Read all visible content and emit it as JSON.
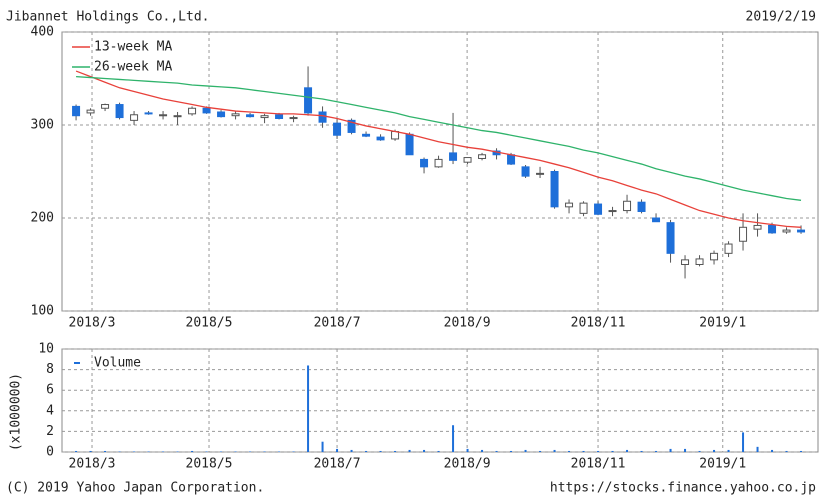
{
  "header": {
    "title": "Jibannet Holdings Co.,Ltd.",
    "date": "2019/2/19"
  },
  "footer": {
    "copyright": "(C) 2019 Yahoo Japan Corporation.",
    "url": "https://stocks.finance.yahoo.co.jp"
  },
  "chart_data": [
    {
      "type": "candlestick",
      "x": [
        0,
        1,
        2,
        3,
        4,
        5,
        6,
        7,
        8,
        9,
        10,
        11,
        12,
        13,
        14,
        15,
        16,
        17,
        18,
        19,
        20,
        21,
        22,
        23,
        24,
        25,
        26,
        27,
        28,
        29,
        30,
        31,
        32,
        33,
        34,
        35,
        36,
        37,
        38,
        39,
        40,
        41,
        42,
        43,
        44,
        45,
        46,
        47,
        48,
        49,
        50
      ],
      "open": [
        320,
        313,
        318,
        322,
        305,
        313,
        311,
        310,
        312,
        318,
        314,
        310,
        311,
        308,
        311,
        307,
        340,
        314,
        302,
        305,
        290,
        287,
        285,
        290,
        263,
        255,
        270,
        260,
        264,
        272,
        268,
        255,
        248,
        250,
        212,
        205,
        215,
        207,
        208,
        217,
        200,
        195,
        150,
        150,
        155,
        162,
        175,
        188,
        192,
        185,
        187
      ],
      "high": [
        322,
        318,
        323,
        324,
        315,
        315,
        315,
        314,
        320,
        320,
        316,
        315,
        313,
        312,
        313,
        310,
        363,
        320,
        307,
        307,
        293,
        290,
        295,
        292,
        265,
        267,
        313,
        265,
        270,
        275,
        270,
        257,
        255,
        252,
        220,
        218,
        218,
        212,
        225,
        220,
        205,
        198,
        160,
        160,
        165,
        175,
        205,
        205,
        195,
        190,
        192
      ],
      "low": [
        305,
        310,
        315,
        306,
        300,
        311,
        306,
        300,
        310,
        312,
        308,
        306,
        308,
        302,
        306,
        303,
        310,
        297,
        285,
        290,
        287,
        283,
        283,
        268,
        248,
        254,
        258,
        258,
        262,
        263,
        257,
        243,
        243,
        210,
        205,
        202,
        203,
        202,
        205,
        205,
        196,
        152,
        135,
        148,
        150,
        158,
        165,
        180,
        183,
        183,
        183
      ],
      "close": [
        310,
        316,
        322,
        308,
        311,
        312,
        311,
        310,
        318,
        313,
        309,
        312,
        309,
        310,
        307,
        308,
        313,
        303,
        289,
        292,
        288,
        284,
        293,
        268,
        255,
        263,
        262,
        265,
        268,
        268,
        258,
        245,
        248,
        212,
        216,
        216,
        204,
        208,
        218,
        207,
        196,
        162,
        155,
        156,
        162,
        172,
        190,
        192,
        184,
        187,
        185
      ],
      "up_color": "#ffffff",
      "down_color": "#1e6fd9",
      "series": [
        {
          "name": "13-week MA",
          "color": "#e8413a",
          "values": [
            358,
            352,
            346,
            340,
            336,
            332,
            328,
            325,
            322,
            319,
            317,
            315,
            314,
            313,
            312,
            312,
            311,
            310,
            307,
            303,
            299,
            296,
            293,
            290,
            286,
            282,
            279,
            276,
            274,
            271,
            268,
            265,
            262,
            258,
            254,
            249,
            244,
            240,
            235,
            230,
            226,
            220,
            214,
            208,
            204,
            200,
            197,
            195,
            193,
            191,
            190
          ]
        },
        {
          "name": "26-week MA",
          "color": "#2fb36b",
          "values": [
            352,
            351,
            350,
            349,
            348,
            347,
            346,
            345,
            343,
            342,
            341,
            340,
            338,
            336,
            334,
            332,
            330,
            328,
            325,
            322,
            319,
            316,
            313,
            309,
            306,
            303,
            300,
            297,
            294,
            292,
            289,
            286,
            283,
            280,
            277,
            273,
            270,
            266,
            262,
            258,
            253,
            249,
            245,
            242,
            238,
            234,
            230,
            227,
            224,
            221,
            219
          ]
        }
      ],
      "xlim": [
        -0.97,
        51.17
      ],
      "xticks": [
        {
          "value": 1.1,
          "label": "2018/3"
        },
        {
          "value": 9.17,
          "label": "2018/5"
        },
        {
          "value": 18,
          "label": "2018/7"
        },
        {
          "value": 26.97,
          "label": "2018/9"
        },
        {
          "value": 36,
          "label": "2018/11"
        },
        {
          "value": 44.6,
          "label": "2019/1"
        }
      ],
      "ylim": [
        100,
        400
      ],
      "yticks": [
        100,
        200,
        300,
        400
      ],
      "grid": true
    },
    {
      "type": "bar",
      "y_label": "(x1000000)",
      "series": [
        {
          "name": "Volume",
          "color": "#1e6fd9",
          "values": [
            0.1,
            0.1,
            0.1,
            0.05,
            0.05,
            0.05,
            0.05,
            0.05,
            0.1,
            0.05,
            0.05,
            0.05,
            0.05,
            0.05,
            0.05,
            0.05,
            8.4,
            1.0,
            0.3,
            0.2,
            0.1,
            0.1,
            0.1,
            0.2,
            0.2,
            0.1,
            2.6,
            0.3,
            0.2,
            0.1,
            0.1,
            0.2,
            0.1,
            0.2,
            0.1,
            0.1,
            0.1,
            0.1,
            0.2,
            0.1,
            0.1,
            0.3,
            0.3,
            0.1,
            0.2,
            0.2,
            1.9,
            0.5,
            0.2,
            0.1,
            0.1
          ]
        }
      ],
      "x": [
        0,
        1,
        2,
        3,
        4,
        5,
        6,
        7,
        8,
        9,
        10,
        11,
        12,
        13,
        14,
        15,
        16,
        17,
        18,
        19,
        20,
        21,
        22,
        23,
        24,
        25,
        26,
        27,
        28,
        29,
        30,
        31,
        32,
        33,
        34,
        35,
        36,
        37,
        38,
        39,
        40,
        41,
        42,
        43,
        44,
        45,
        46,
        47,
        48,
        49,
        50
      ],
      "xlim": [
        -0.97,
        51.17
      ],
      "xticks": [
        {
          "value": 1.1,
          "label": "2018/3"
        },
        {
          "value": 9.17,
          "label": "2018/5"
        },
        {
          "value": 18,
          "label": "2018/7"
        },
        {
          "value": 26.97,
          "label": "2018/9"
        },
        {
          "value": 36,
          "label": "2018/11"
        },
        {
          "value": 44.6,
          "label": "2019/1"
        }
      ],
      "ylim": [
        0,
        10
      ],
      "yticks": [
        0,
        2,
        4,
        6,
        8,
        10
      ],
      "grid": true
    }
  ]
}
